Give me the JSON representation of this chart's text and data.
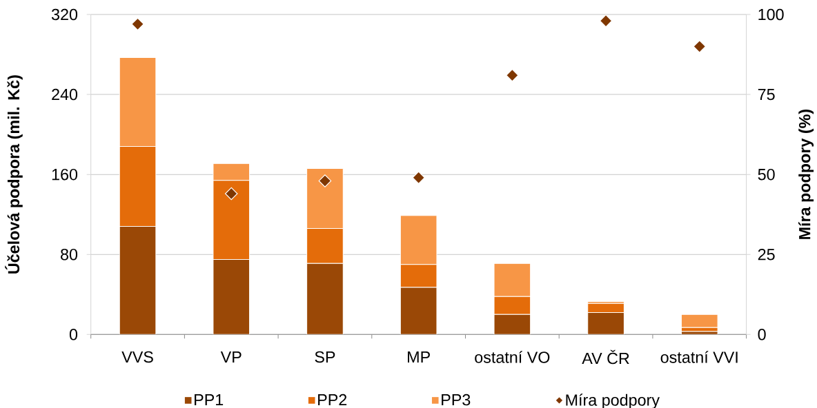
{
  "chart_data": {
    "type": "bar",
    "stacked": true,
    "ylabel": "Účelová podpora (mil. Kč)",
    "y2label": "Míra podpory (%)",
    "categories": [
      "VVS",
      "VP",
      "SP",
      "MP",
      "ostatní VO",
      "AV ČR",
      "ostatní VVI"
    ],
    "series": [
      {
        "name": "PP1",
        "color": "#9a4806",
        "values": [
          108,
          75,
          71,
          47,
          20,
          22,
          3
        ]
      },
      {
        "name": "PP2",
        "color": "#e46c0a",
        "values": [
          80,
          79,
          35,
          23,
          18,
          9,
          4
        ]
      },
      {
        "name": "PP3",
        "color": "#f79646",
        "values": [
          89,
          17,
          60,
          49,
          33,
          2,
          13
        ]
      },
      {
        "name": "Míra podpory",
        "type": "scatter",
        "axis": "y2",
        "marker": "diamond",
        "color": "#7f3700",
        "values": [
          97,
          44,
          48,
          49,
          81,
          98,
          90
        ]
      }
    ],
    "ylim": [
      0,
      320
    ],
    "yticks": [
      0,
      80,
      160,
      240,
      320
    ],
    "y2lim": [
      0,
      100
    ],
    "y2ticks": [
      0,
      25,
      50,
      75,
      100
    ],
    "grid": "y",
    "legend": "bottom"
  }
}
